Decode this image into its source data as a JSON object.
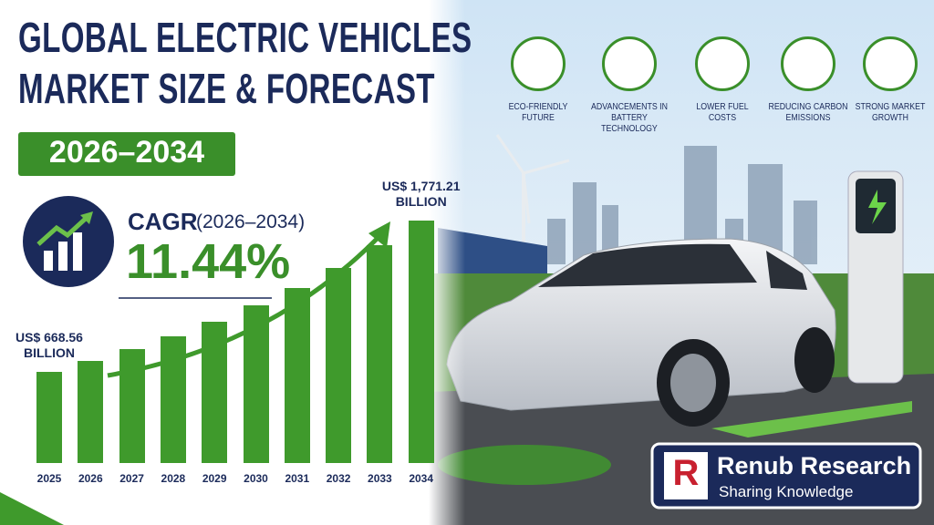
{
  "header": {
    "title_lines": [
      "GLOBAL ELECTRIC VEHICLES",
      "MARKET SIZE & FORECAST"
    ],
    "period": "2026–2034"
  },
  "cagr": {
    "label": "CAGR",
    "period": "(2026–2034)",
    "value": "11.44%"
  },
  "features": [
    "ECO-FRIENDLY FUTURE",
    "ADVANCEMENTS IN BATTERY TECHNOLOGY",
    "LOWER FUEL COSTS",
    "REDUCING CARBON EMISSIONS",
    "STRONG MARKET GROWTH"
  ],
  "brand": {
    "name": "Renub Research",
    "tagline": "Sharing Knowledge"
  },
  "chart_data": {
    "type": "bar",
    "categories": [
      "2025",
      "2026",
      "2027",
      "2028",
      "2029",
      "2030",
      "2031",
      "2032",
      "2033",
      "2034"
    ],
    "values": [
      668.56,
      745,
      830,
      925,
      1031,
      1149,
      1281,
      1427,
      1590,
      1771.21
    ],
    "value_labels": [
      "US$ 668.56 BILLION",
      null,
      null,
      null,
      null,
      null,
      null,
      null,
      null,
      "US$ 1,771.21 BILLION"
    ],
    "color": "#3f9a2c"
  }
}
